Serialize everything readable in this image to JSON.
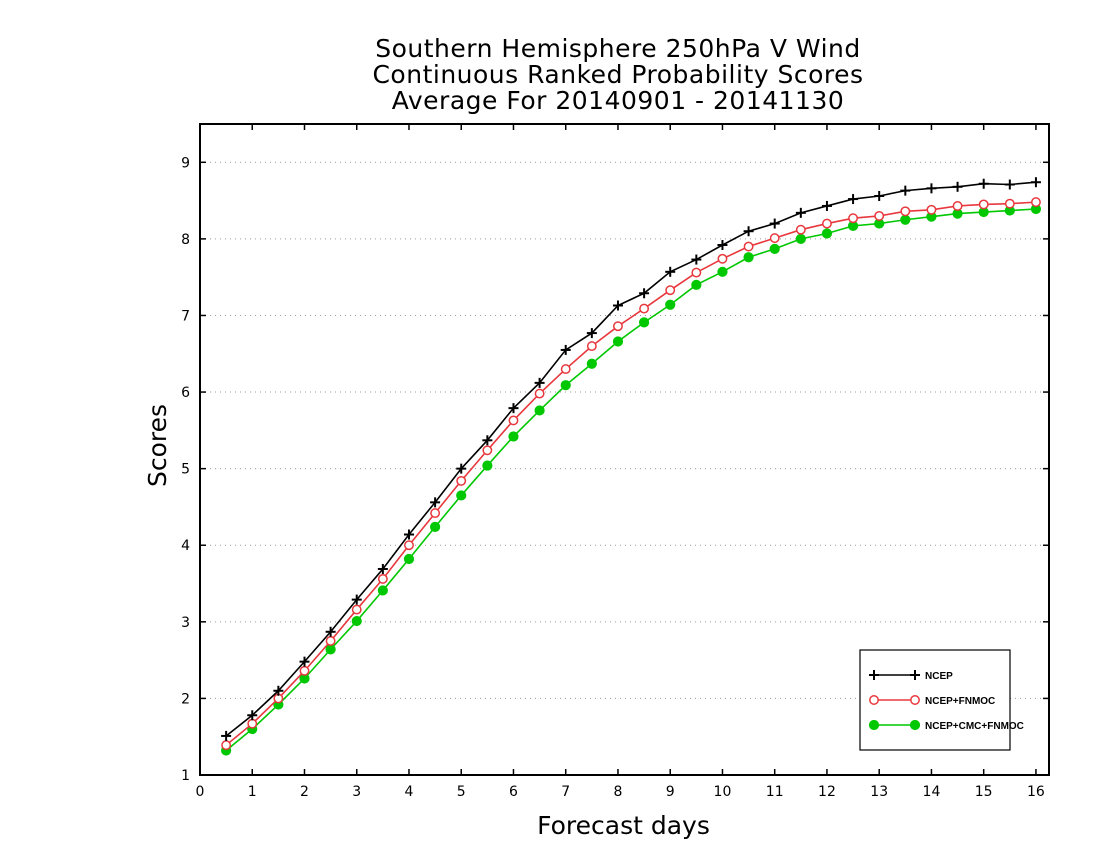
{
  "chart_data": {
    "type": "line",
    "title": [
      "Southern Hemisphere 250hPa V Wind",
      "Continuous Ranked Probability Scores",
      "Average For 20140901 - 20141130"
    ],
    "xlabel": "Forecast days",
    "ylabel": "Scores",
    "xlim": [
      0,
      16.25
    ],
    "ylim": [
      1,
      9.5
    ],
    "xticks": [
      0,
      1,
      2,
      3,
      4,
      5,
      6,
      7,
      8,
      9,
      10,
      11,
      12,
      13,
      14,
      15,
      16
    ],
    "yticks": [
      1,
      2,
      3,
      4,
      5,
      6,
      7,
      8,
      9
    ],
    "grid": "horizontal dotted",
    "legend_position": "bottom-right",
    "x": [
      0.5,
      1,
      1.5,
      2,
      2.5,
      3,
      3.5,
      4,
      4.5,
      5,
      5.5,
      6,
      6.5,
      7,
      7.5,
      8,
      8.5,
      9,
      9.5,
      10,
      10.5,
      11,
      11.5,
      12,
      12.5,
      13,
      13.5,
      14,
      14.5,
      15,
      15.5,
      16
    ],
    "series": [
      {
        "name": "NCEP",
        "color": "#000000",
        "marker": "plus",
        "values": [
          1.51,
          1.78,
          2.1,
          2.48,
          2.87,
          3.29,
          3.69,
          4.14,
          4.56,
          5.0,
          5.37,
          5.79,
          6.12,
          6.55,
          6.77,
          7.13,
          7.29,
          7.57,
          7.73,
          7.92,
          8.1,
          8.2,
          8.34,
          8.43,
          8.52,
          8.56,
          8.63,
          8.66,
          8.68,
          8.72,
          8.71,
          8.74
        ]
      },
      {
        "name": "NCEP+FNMOC",
        "color": "#e8383d",
        "marker": "open-circle",
        "values": [
          1.39,
          1.67,
          2.0,
          2.36,
          2.75,
          3.16,
          3.56,
          4.0,
          4.42,
          4.84,
          5.24,
          5.63,
          5.98,
          6.3,
          6.6,
          6.86,
          7.09,
          7.33,
          7.56,
          7.74,
          7.9,
          8.01,
          8.12,
          8.2,
          8.27,
          8.3,
          8.36,
          8.38,
          8.43,
          8.45,
          8.46,
          8.48
        ]
      },
      {
        "name": "NCEP+CMC+FNMOC",
        "color": "#00c800",
        "marker": "filled-circle",
        "values": [
          1.32,
          1.6,
          1.92,
          2.26,
          2.64,
          3.01,
          3.41,
          3.82,
          4.24,
          4.65,
          5.04,
          5.42,
          5.76,
          6.09,
          6.37,
          6.66,
          6.91,
          7.14,
          7.4,
          7.57,
          7.76,
          7.87,
          8.0,
          8.07,
          8.17,
          8.2,
          8.25,
          8.29,
          8.33,
          8.35,
          8.37,
          8.39
        ]
      }
    ]
  }
}
